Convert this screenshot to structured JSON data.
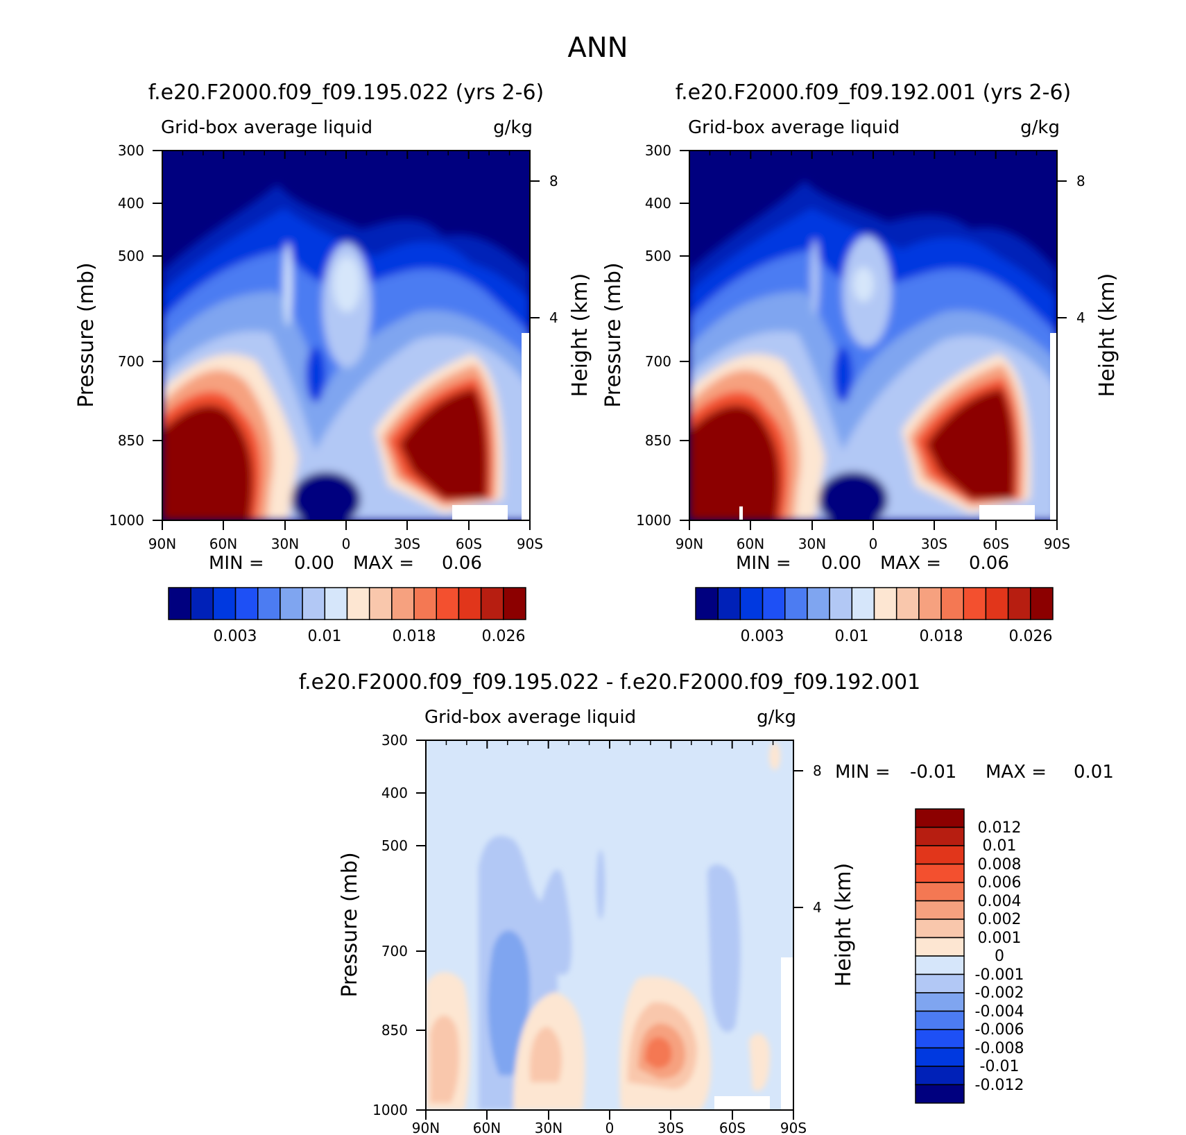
{
  "page_title": "ANN",
  "colors": {
    "seq": [
      "#00007f",
      "#0021b8",
      "#0039e0",
      "#1e50f5",
      "#4c7cf2",
      "#7fa5f0",
      "#b2c8f5",
      "#d6e6fa",
      "#fde6d2",
      "#f9c7ac",
      "#f6a17f",
      "#f47853",
      "#f3502f",
      "#e1361b",
      "#b71e11",
      "#8c0000"
    ],
    "diff": [
      "#00007f",
      "#0021b8",
      "#0039e0",
      "#1e50f5",
      "#4c7cf2",
      "#7fa5f0",
      "#b2c8f5",
      "#d6e6fa",
      "#fde6d2",
      "#f9c7ac",
      "#f6a17f",
      "#f47853",
      "#f3502f",
      "#e1361b",
      "#b71e11",
      "#8c0000"
    ]
  },
  "chart_data": [
    {
      "type": "heatmap",
      "title": "f.e20.F2000.f09_f09.195.022 (yrs 2-6)",
      "left_label": "Grid-box average liquid",
      "right_label": "g/kg",
      "ylabel": "Pressure (mb)",
      "y2label": "Height (km)",
      "x_ticks": [
        "90N",
        "60N",
        "30N",
        "0",
        "30S",
        "60S",
        "90S"
      ],
      "y_ticks": [
        "300",
        "400",
        "500",
        "700",
        "850",
        "1000"
      ],
      "y2_ticks": [
        "8",
        "4"
      ],
      "min_text": "MIN =",
      "min_value": "0.00",
      "max_text": "MAX =",
      "max_value": "0.06",
      "colorbar_labels": [
        "0.003",
        "0.01",
        "0.018",
        "0.026"
      ]
    },
    {
      "type": "heatmap",
      "title": "f.e20.F2000.f09_f09.192.001 (yrs 2-6)",
      "left_label": "Grid-box average liquid",
      "right_label": "g/kg",
      "ylabel": "Pressure (mb)",
      "y2label": "Height (km)",
      "x_ticks": [
        "90N",
        "60N",
        "30N",
        "0",
        "30S",
        "60S",
        "90S"
      ],
      "y_ticks": [
        "300",
        "400",
        "500",
        "700",
        "850",
        "1000"
      ],
      "y2_ticks": [
        "8",
        "4"
      ],
      "min_text": "MIN =",
      "min_value": "0.00",
      "max_text": "MAX =",
      "max_value": "0.06",
      "colorbar_labels": [
        "0.003",
        "0.01",
        "0.018",
        "0.026"
      ]
    },
    {
      "type": "heatmap",
      "title": "f.e20.F2000.f09_f09.195.022 - f.e20.F2000.f09_f09.192.001",
      "left_label": "Grid-box average liquid",
      "right_label": "g/kg",
      "ylabel": "Pressure (mb)",
      "y2label": "Height (km)",
      "x_ticks": [
        "90N",
        "60N",
        "30N",
        "0",
        "30S",
        "60S",
        "90S"
      ],
      "y_ticks": [
        "300",
        "400",
        "500",
        "700",
        "850",
        "1000"
      ],
      "y2_ticks": [
        "8",
        "4"
      ],
      "min_text": "MIN =",
      "min_value": "-0.01",
      "max_text": "MAX =",
      "max_value": "0.01",
      "colorbar_labels": [
        "0.012",
        "0.01",
        "0.008",
        "0.006",
        "0.004",
        "0.002",
        "0.001",
        "0",
        "-0.001",
        "-0.002",
        "-0.004",
        "-0.006",
        "-0.008",
        "-0.01",
        "-0.012"
      ]
    }
  ]
}
